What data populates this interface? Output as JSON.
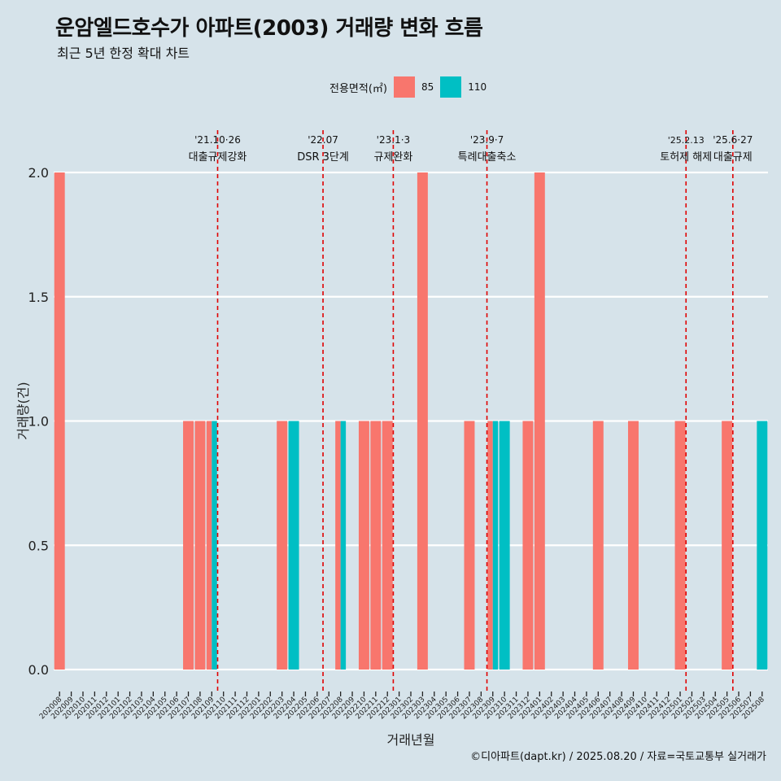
{
  "title": "운암엘드호수가 아파트(2003) 거래량 변화 흐름",
  "subtitle": "최근 5년 한정 확대 차트",
  "caption": "©디아파트(dapt.kr) / 2025.08.20 / 자료=국토교통부 실거래가",
  "colors": {
    "background": "#d6e3ea",
    "s85": "#f8766d",
    "s110": "#00bfc4",
    "event_line": "#e00000",
    "grid": "#ffffff"
  },
  "chart_data": {
    "type": "bar",
    "title": "운암엘드호수가 아파트(2003) 거래량 변화 흐름",
    "xlabel": "거래년월",
    "ylabel": "거래량(건)",
    "ylim": [
      0,
      2
    ],
    "yticks": [
      "0.0",
      "0.5",
      "1.0",
      "1.5",
      "2.0"
    ],
    "legend": {
      "title": "전용면적(㎡)",
      "position": "top"
    },
    "categories": [
      "202008",
      "202009",
      "202010",
      "202011",
      "202012",
      "202101",
      "202102",
      "202103",
      "202104",
      "202105",
      "202106",
      "202107",
      "202108",
      "202109",
      "202110",
      "202111",
      "202112",
      "202201",
      "202202",
      "202203",
      "202204",
      "202205",
      "202206",
      "202207",
      "202208",
      "202209",
      "202210",
      "202211",
      "202212",
      "202301",
      "202302",
      "202303",
      "202304",
      "202305",
      "202306",
      "202307",
      "202308",
      "202309",
      "202310",
      "202311",
      "202312",
      "202401",
      "202402",
      "202403",
      "202404",
      "202405",
      "202406",
      "202407",
      "202408",
      "202409",
      "202410",
      "202411",
      "202412",
      "202501",
      "202502",
      "202503",
      "202504",
      "202505",
      "202506",
      "202507",
      "202508"
    ],
    "series": [
      {
        "name": "85",
        "values": [
          2,
          0,
          0,
          0,
          0,
          0,
          0,
          0,
          0,
          0,
          0,
          1,
          1,
          1,
          0,
          0,
          0,
          0,
          0,
          1,
          0,
          0,
          0,
          0,
          1,
          0,
          1,
          1,
          1,
          0,
          0,
          2,
          0,
          0,
          0,
          1,
          0,
          1,
          0,
          0,
          1,
          2,
          0,
          0,
          0,
          0,
          1,
          0,
          0,
          1,
          0,
          0,
          0,
          1,
          0,
          0,
          0,
          1,
          0,
          0,
          0
        ]
      },
      {
        "name": "110",
        "values": [
          0,
          0,
          0,
          0,
          0,
          0,
          0,
          0,
          0,
          0,
          0,
          0,
          0,
          1,
          0,
          0,
          0,
          0,
          0,
          0,
          1,
          0,
          0,
          0,
          1,
          0,
          0,
          0,
          0,
          0,
          0,
          0,
          0,
          0,
          0,
          0,
          0,
          1,
          1,
          0,
          0,
          0,
          0,
          0,
          0,
          0,
          0,
          0,
          0,
          0,
          0,
          0,
          0,
          0,
          0,
          0,
          0,
          0,
          0,
          0,
          1
        ]
      }
    ],
    "events": [
      {
        "date": "'21.10·26",
        "label": "대출규제강화",
        "month": "202110"
      },
      {
        "date": "'22.07",
        "label": "DSR 3단계",
        "month": "202207"
      },
      {
        "date": "'23.1·3",
        "label": "규제완화",
        "month": "202301"
      },
      {
        "date": "'23.9·7",
        "label": "특례대출축소",
        "month": "202309"
      },
      {
        "date": "'25.2.13",
        "label": "토허제 해제",
        "month": "202502"
      },
      {
        "date": "'25.6·27",
        "label": "대출규제",
        "month": "202506"
      }
    ]
  }
}
